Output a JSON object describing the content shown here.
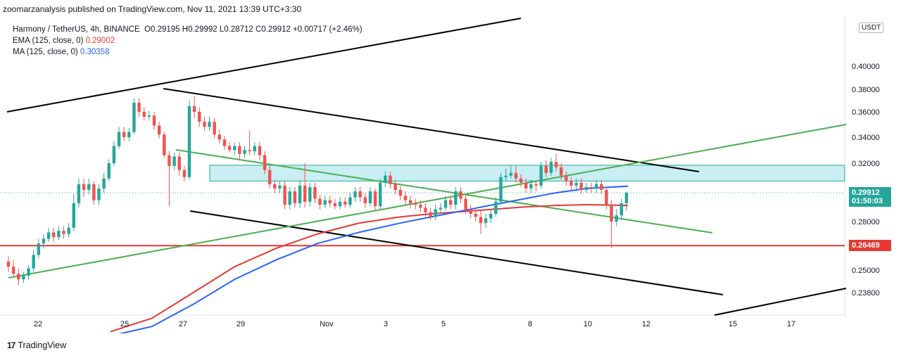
{
  "publisher_line": "zoomarzanalysis published on TradingView.com, Nov 11, 2021 13:39 UTC+3:30",
  "legend": {
    "symbol_line": "Harmony / TetherUS, 4h, BINANCE",
    "ohlc": "O0.29195 H0.29992 L0.28712 C0.29912 +0.00717 (+2.46%)",
    "ema_label": "EMA (125, close, 0)",
    "ema_value": "0.29002",
    "ma_label": "MA (125, close, 0)",
    "ma_value": "0.30358"
  },
  "currency_badge": "USDT",
  "last_price_badge": "0.29912",
  "countdown_badge": "01:50:03",
  "level_badge": "0.26469",
  "branding": "TradingView",
  "colors": {
    "up": "#26a69a",
    "down": "#ef5350",
    "ema": "#e53935",
    "ma": "#2962ff",
    "channel": "#000000",
    "trend": "#4caf50",
    "zone_fill": "#c9eef3",
    "zone_border": "#26a69a",
    "level": "#e53935"
  },
  "chart_data": {
    "type": "candlestick",
    "title": "Harmony / TetherUS, 4h, BINANCE",
    "x_ticks": [
      "22",
      "25",
      "27",
      "29",
      "Nov",
      "3",
      "5",
      "8",
      "10",
      "12",
      "15",
      "17"
    ],
    "y_ticks": [
      "0.40000",
      "0.38000",
      "0.36000",
      "0.34000",
      "0.32000",
      "0.28000",
      "0.25000",
      "0.23800"
    ],
    "ylim": [
      0.216,
      0.425
    ],
    "scale": "log",
    "grid": false,
    "resistance_zone": [
      0.3072,
      0.3185
    ],
    "horizontal_level": 0.26469,
    "last_price": 0.29912,
    "candles": [
      [
        0.255,
        0.252,
        0.258,
        0.249
      ],
      [
        0.252,
        0.248,
        0.256,
        0.246
      ],
      [
        0.248,
        0.245,
        0.251,
        0.242
      ],
      [
        0.245,
        0.247,
        0.249,
        0.243
      ],
      [
        0.247,
        0.251,
        0.253,
        0.245
      ],
      [
        0.251,
        0.259,
        0.262,
        0.249
      ],
      [
        0.259,
        0.266,
        0.269,
        0.257
      ],
      [
        0.266,
        0.269,
        0.272,
        0.263
      ],
      [
        0.269,
        0.273,
        0.276,
        0.267
      ],
      [
        0.273,
        0.27,
        0.276,
        0.267
      ],
      [
        0.27,
        0.274,
        0.277,
        0.268
      ],
      [
        0.274,
        0.272,
        0.277,
        0.269
      ],
      [
        0.272,
        0.276,
        0.279,
        0.27
      ],
      [
        0.276,
        0.292,
        0.298,
        0.274
      ],
      [
        0.292,
        0.305,
        0.309,
        0.289
      ],
      [
        0.305,
        0.301,
        0.309,
        0.296
      ],
      [
        0.301,
        0.305,
        0.309,
        0.298
      ],
      [
        0.305,
        0.294,
        0.307,
        0.291
      ],
      [
        0.294,
        0.302,
        0.305,
        0.291
      ],
      [
        0.302,
        0.309,
        0.313,
        0.299
      ],
      [
        0.309,
        0.32,
        0.323,
        0.307
      ],
      [
        0.32,
        0.333,
        0.337,
        0.318
      ],
      [
        0.333,
        0.344,
        0.348,
        0.331
      ],
      [
        0.344,
        0.34,
        0.348,
        0.337
      ],
      [
        0.34,
        0.344,
        0.347,
        0.337
      ],
      [
        0.344,
        0.368,
        0.372,
        0.342
      ],
      [
        0.368,
        0.36,
        0.372,
        0.356
      ],
      [
        0.36,
        0.356,
        0.364,
        0.353
      ],
      [
        0.356,
        0.357,
        0.361,
        0.353
      ],
      [
        0.357,
        0.349,
        0.36,
        0.346
      ],
      [
        0.349,
        0.342,
        0.352,
        0.339
      ],
      [
        0.342,
        0.326,
        0.344,
        0.324
      ],
      [
        0.326,
        0.318,
        0.329,
        0.29
      ],
      [
        0.318,
        0.325,
        0.328,
        0.315
      ],
      [
        0.325,
        0.315,
        0.328,
        0.311
      ],
      [
        0.315,
        0.31,
        0.318,
        0.307
      ],
      [
        0.31,
        0.365,
        0.37,
        0.308
      ],
      [
        0.365,
        0.36,
        0.374,
        0.355
      ],
      [
        0.36,
        0.352,
        0.364,
        0.348
      ],
      [
        0.352,
        0.348,
        0.356,
        0.345
      ],
      [
        0.348,
        0.352,
        0.356,
        0.345
      ],
      [
        0.352,
        0.342,
        0.355,
        0.339
      ],
      [
        0.342,
        0.338,
        0.346,
        0.335
      ],
      [
        0.338,
        0.333,
        0.341,
        0.33
      ],
      [
        0.333,
        0.33,
        0.336,
        0.328
      ],
      [
        0.33,
        0.333,
        0.336,
        0.326
      ],
      [
        0.333,
        0.327,
        0.336,
        0.322
      ],
      [
        0.327,
        0.33,
        0.333,
        0.324
      ],
      [
        0.33,
        0.329,
        0.345,
        0.326
      ],
      [
        0.329,
        0.333,
        0.336,
        0.326
      ],
      [
        0.333,
        0.326,
        0.336,
        0.322
      ],
      [
        0.326,
        0.315,
        0.329,
        0.312
      ],
      [
        0.315,
        0.305,
        0.318,
        0.302
      ],
      [
        0.305,
        0.302,
        0.308,
        0.299
      ],
      [
        0.302,
        0.304,
        0.307,
        0.299
      ],
      [
        0.304,
        0.291,
        0.307,
        0.288
      ],
      [
        0.291,
        0.3,
        0.303,
        0.288
      ],
      [
        0.3,
        0.292,
        0.303,
        0.289
      ],
      [
        0.292,
        0.304,
        0.308,
        0.289
      ],
      [
        0.304,
        0.293,
        0.32,
        0.289
      ],
      [
        0.293,
        0.303,
        0.306,
        0.29
      ],
      [
        0.303,
        0.295,
        0.306,
        0.292
      ],
      [
        0.295,
        0.291,
        0.298,
        0.288
      ],
      [
        0.291,
        0.294,
        0.297,
        0.289
      ],
      [
        0.294,
        0.292,
        0.297,
        0.289
      ],
      [
        0.292,
        0.29,
        0.295,
        0.288
      ],
      [
        0.29,
        0.293,
        0.296,
        0.288
      ],
      [
        0.293,
        0.291,
        0.296,
        0.289
      ],
      [
        0.291,
        0.296,
        0.299,
        0.289
      ],
      [
        0.296,
        0.3,
        0.303,
        0.293
      ],
      [
        0.3,
        0.296,
        0.303,
        0.293
      ],
      [
        0.296,
        0.292,
        0.299,
        0.289
      ],
      [
        0.292,
        0.3,
        0.303,
        0.29
      ],
      [
        0.3,
        0.29,
        0.302,
        0.287
      ],
      [
        0.29,
        0.306,
        0.309,
        0.288
      ],
      [
        0.306,
        0.311,
        0.314,
        0.303
      ],
      [
        0.311,
        0.305,
        0.314,
        0.302
      ],
      [
        0.305,
        0.301,
        0.308,
        0.298
      ],
      [
        0.301,
        0.297,
        0.304,
        0.294
      ],
      [
        0.297,
        0.294,
        0.3,
        0.291
      ],
      [
        0.294,
        0.292,
        0.297,
        0.289
      ],
      [
        0.292,
        0.291,
        0.295,
        0.288
      ],
      [
        0.291,
        0.289,
        0.294,
        0.286
      ],
      [
        0.289,
        0.286,
        0.292,
        0.283
      ],
      [
        0.286,
        0.283,
        0.289,
        0.281
      ],
      [
        0.283,
        0.288,
        0.291,
        0.281
      ],
      [
        0.288,
        0.289,
        0.292,
        0.285
      ],
      [
        0.289,
        0.294,
        0.297,
        0.287
      ],
      [
        0.294,
        0.291,
        0.297,
        0.288
      ],
      [
        0.291,
        0.3,
        0.303,
        0.288
      ],
      [
        0.3,
        0.295,
        0.303,
        0.292
      ],
      [
        0.295,
        0.288,
        0.298,
        0.285
      ],
      [
        0.288,
        0.285,
        0.291,
        0.282
      ],
      [
        0.285,
        0.283,
        0.288,
        0.28
      ],
      [
        0.283,
        0.279,
        0.287,
        0.272
      ],
      [
        0.279,
        0.282,
        0.285,
        0.276
      ],
      [
        0.282,
        0.285,
        0.288,
        0.279
      ],
      [
        0.285,
        0.293,
        0.296,
        0.283
      ],
      [
        0.293,
        0.31,
        0.313,
        0.291
      ],
      [
        0.31,
        0.311,
        0.316,
        0.307
      ],
      [
        0.311,
        0.313,
        0.318,
        0.309
      ],
      [
        0.313,
        0.309,
        0.318,
        0.306
      ],
      [
        0.309,
        0.306,
        0.312,
        0.303
      ],
      [
        0.306,
        0.302,
        0.309,
        0.299
      ],
      [
        0.302,
        0.305,
        0.308,
        0.299
      ],
      [
        0.305,
        0.304,
        0.308,
        0.3
      ],
      [
        0.304,
        0.318,
        0.321,
        0.302
      ],
      [
        0.318,
        0.313,
        0.322,
        0.31
      ],
      [
        0.313,
        0.321,
        0.324,
        0.311
      ],
      [
        0.321,
        0.317,
        0.327,
        0.314
      ],
      [
        0.317,
        0.311,
        0.32,
        0.308
      ],
      [
        0.311,
        0.307,
        0.314,
        0.304
      ],
      [
        0.307,
        0.304,
        0.31,
        0.301
      ],
      [
        0.304,
        0.306,
        0.309,
        0.3
      ],
      [
        0.306,
        0.301,
        0.309,
        0.298
      ],
      [
        0.301,
        0.303,
        0.306,
        0.299
      ],
      [
        0.303,
        0.302,
        0.306,
        0.299
      ],
      [
        0.302,
        0.305,
        0.308,
        0.299
      ],
      [
        0.305,
        0.301,
        0.308,
        0.298
      ],
      [
        0.301,
        0.291,
        0.303,
        0.288
      ],
      [
        0.291,
        0.28,
        0.294,
        0.263
      ],
      [
        0.28,
        0.284,
        0.288,
        0.277
      ],
      [
        0.284,
        0.292,
        0.295,
        0.281
      ],
      [
        0.292,
        0.299,
        0.3,
        0.287
      ]
    ],
    "ema_125": [
      [
        0.2185,
        0
      ],
      [
        0.225,
        0.08
      ],
      [
        0.238,
        0.16
      ],
      [
        0.252,
        0.24
      ],
      [
        0.263,
        0.32
      ],
      [
        0.272,
        0.4
      ],
      [
        0.279,
        0.48
      ],
      [
        0.283,
        0.56
      ],
      [
        0.285,
        0.62
      ],
      [
        0.2865,
        0.68
      ],
      [
        0.288,
        0.74
      ],
      [
        0.2895,
        0.8
      ],
      [
        0.2905,
        0.86
      ],
      [
        0.291,
        0.92
      ],
      [
        0.2905,
        1.0
      ]
    ],
    "ma_125": [
      [
        0.2165,
        0
      ],
      [
        0.221,
        0.08
      ],
      [
        0.232,
        0.16
      ],
      [
        0.245,
        0.24
      ],
      [
        0.256,
        0.32
      ],
      [
        0.266,
        0.4
      ],
      [
        0.273,
        0.48
      ],
      [
        0.279,
        0.56
      ],
      [
        0.283,
        0.62
      ],
      [
        0.287,
        0.68
      ],
      [
        0.291,
        0.74
      ],
      [
        0.295,
        0.8
      ],
      [
        0.299,
        0.86
      ],
      [
        0.302,
        0.92
      ],
      [
        0.3036,
        1.0
      ]
    ]
  }
}
